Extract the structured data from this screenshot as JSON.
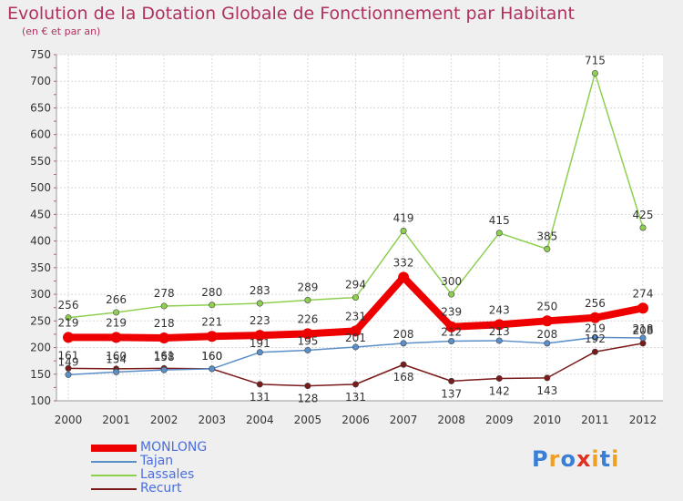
{
  "title": "Evolution de la Dotation Globale de Fonctionnement par Habitant",
  "subtitle": "(en € et par an)",
  "logo": {
    "letters": [
      "P",
      "r",
      "o",
      "x",
      "i",
      "t",
      "i"
    ],
    "colors": [
      "#3a7fd5",
      "#f0a020",
      "#3a7fd5",
      "#e03020",
      "#f0a020",
      "#3a7fd5",
      "#f0a020"
    ]
  },
  "chart_data": {
    "type": "line",
    "x": [
      "2000",
      "2001",
      "2002",
      "2003",
      "2004",
      "2005",
      "2006",
      "2007",
      "2008",
      "2009",
      "2010",
      "2011",
      "2012"
    ],
    "ylim": [
      100,
      750
    ],
    "yticks": [
      100,
      150,
      200,
      250,
      300,
      350,
      400,
      450,
      500,
      550,
      600,
      650,
      700,
      750
    ],
    "grid": true,
    "legend_position": "bottom-left",
    "series": [
      {
        "name": "MONLONG",
        "color": "#ee0000",
        "values": [
          219,
          219,
          218,
          221,
          223,
          226,
          231,
          332,
          239,
          243,
          250,
          256,
          274
        ]
      },
      {
        "name": "Tajan",
        "color": "#5b8fc9",
        "values": [
          149,
          154,
          158,
          160,
          191,
          195,
          201,
          208,
          212,
          213,
          208,
          219,
          218
        ]
      },
      {
        "name": "Lassales",
        "color": "#8fcf50",
        "values": [
          256,
          266,
          278,
          280,
          283,
          289,
          294,
          419,
          300,
          415,
          385,
          715,
          425
        ]
      },
      {
        "name": "Recurt",
        "color": "#7a1a1a",
        "values": [
          161,
          160,
          161,
          160,
          131,
          128,
          131,
          168,
          137,
          142,
          143,
          192,
          208
        ]
      }
    ]
  }
}
